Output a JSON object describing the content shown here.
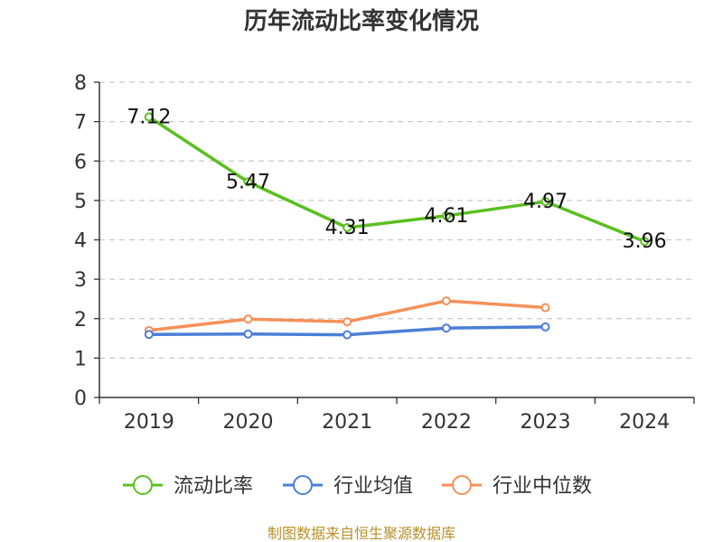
{
  "chart_data": {
    "type": "line",
    "title": "历年流动比率变化情况",
    "categories": [
      "2019",
      "2020",
      "2021",
      "2022",
      "2023",
      "2024"
    ],
    "ylim": [
      0,
      8
    ],
    "yticks": [
      0,
      1,
      2,
      3,
      4,
      5,
      6,
      7,
      8
    ],
    "grid": true,
    "legend_position": "bottom",
    "series": [
      {
        "name": "流动比率",
        "color": "#5bbf21",
        "values": [
          7.12,
          5.47,
          4.31,
          4.61,
          4.97,
          3.96
        ],
        "labels": [
          "7.12",
          "5.47",
          "4.31",
          "4.61",
          "4.97",
          "3.96"
        ]
      },
      {
        "name": "行业均值",
        "color": "#4a7fd6",
        "values": [
          1.6,
          1.61,
          1.59,
          1.76,
          1.79,
          null
        ]
      },
      {
        "name": "行业中位数",
        "color": "#f5905a",
        "values": [
          1.7,
          1.99,
          1.92,
          2.45,
          2.28,
          null
        ]
      }
    ],
    "source": "制图数据来自恒生聚源数据库"
  }
}
